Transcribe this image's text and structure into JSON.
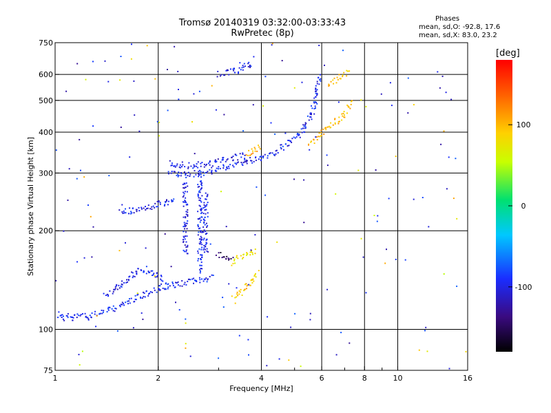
{
  "chart_data": {
    "type": "scatter",
    "title": "Tromsø 20140319 03:32:00-03:33:43",
    "subtitle": "RwPretec (8p)",
    "phases_header": "Phases",
    "phases_o": "mean, sd,O: -92.8, 17.6",
    "phases_x": "mean, sd,X: 83.0, 23.2",
    "xlabel": "Frequency [MHz]",
    "ylabel": "Stationary phase Virtual Height [km]",
    "x_scale": "log2",
    "y_scale": "log",
    "xlim": [
      1,
      16
    ],
    "ylim": [
      75,
      750
    ],
    "x_ticks": [
      1,
      2,
      4,
      6,
      8,
      10,
      16
    ],
    "x_minor_ticks": [
      3,
      5,
      7,
      9
    ],
    "y_ticks": [
      75,
      100,
      200,
      300,
      400,
      500,
      600,
      750
    ],
    "grid_x": [
      2,
      4,
      6,
      8,
      10
    ],
    "grid_y": [
      100,
      200,
      300,
      400,
      500,
      600
    ],
    "colorbar": {
      "label": "[deg]",
      "range": [
        -180,
        180
      ],
      "ticks": [
        100,
        0,
        -100
      ],
      "colors": [
        "#000000",
        "#3a0a80",
        "#1a2dff",
        "#00c8ff",
        "#00e070",
        "#c8ff00",
        "#ffd000",
        "#ff6000",
        "#ff0000"
      ]
    },
    "series": [
      {
        "kind": "trace",
        "points": [
          [
            1.02,
            112
          ],
          [
            1.05,
            108
          ],
          [
            1.08,
            110
          ],
          [
            1.12,
            107
          ],
          [
            1.18,
            111
          ],
          [
            1.25,
            109
          ],
          [
            1.32,
            112
          ],
          [
            1.4,
            113
          ],
          [
            1.5,
            116
          ],
          [
            1.6,
            120
          ],
          [
            1.7,
            124
          ],
          [
            1.8,
            127
          ],
          [
            1.9,
            130
          ],
          [
            2.0,
            133
          ],
          [
            2.1,
            134
          ],
          [
            2.2,
            136
          ],
          [
            2.35,
            138
          ],
          [
            2.5,
            140
          ],
          [
            2.7,
            142
          ],
          [
            2.9,
            145
          ]
        ],
        "phase": -95
      },
      {
        "kind": "trace",
        "points": [
          [
            1.4,
            128
          ],
          [
            1.5,
            132
          ],
          [
            1.6,
            140
          ],
          [
            1.7,
            148
          ],
          [
            1.8,
            153
          ],
          [
            1.9,
            150
          ],
          [
            2.0,
            144
          ],
          [
            2.1,
            138
          ]
        ],
        "phase": -100
      },
      {
        "kind": "trace",
        "points": [
          [
            1.55,
            227
          ],
          [
            1.7,
            230
          ],
          [
            1.85,
            235
          ],
          [
            2.0,
            240
          ],
          [
            2.1,
            243
          ],
          [
            2.2,
            246
          ],
          [
            2.25,
            252
          ]
        ],
        "phase": -98
      },
      {
        "kind": "trace",
        "points": [
          [
            2.15,
            300
          ],
          [
            2.3,
            298
          ],
          [
            2.45,
            298
          ],
          [
            2.6,
            299
          ],
          [
            2.8,
            303
          ],
          [
            3.0,
            308
          ],
          [
            3.2,
            315
          ],
          [
            3.5,
            322
          ],
          [
            3.8,
            330
          ],
          [
            4.1,
            338
          ],
          [
            4.5,
            352
          ],
          [
            4.9,
            375
          ],
          [
            5.3,
            405
          ],
          [
            5.6,
            450
          ],
          [
            5.8,
            520
          ],
          [
            5.9,
            600
          ]
        ],
        "phase": -95
      },
      {
        "kind": "trace",
        "points": [
          [
            2.15,
            320
          ],
          [
            2.3,
            318
          ],
          [
            2.5,
            316
          ],
          [
            2.7,
            318
          ],
          [
            2.9,
            322
          ],
          [
            3.1,
            328
          ],
          [
            3.3,
            334
          ],
          [
            3.6,
            340
          ]
        ],
        "phase": -100
      },
      {
        "kind": "trace",
        "points": [
          [
            2.4,
            170
          ],
          [
            2.4,
            200
          ],
          [
            2.4,
            230
          ],
          [
            2.4,
            260
          ],
          [
            2.4,
            290
          ]
        ],
        "phase": -100
      },
      {
        "kind": "trace",
        "points": [
          [
            2.65,
            150
          ],
          [
            2.65,
            180
          ],
          [
            2.65,
            210
          ],
          [
            2.65,
            240
          ],
          [
            2.65,
            270
          ],
          [
            2.65,
            300
          ]
        ],
        "phase": -95
      },
      {
        "kind": "trace",
        "points": [
          [
            2.75,
            170
          ],
          [
            2.75,
            200
          ],
          [
            2.75,
            230
          ],
          [
            2.75,
            260
          ]
        ],
        "phase": -100
      },
      {
        "kind": "trace",
        "points": [
          [
            3.0,
            600
          ],
          [
            3.1,
            605
          ],
          [
            3.2,
            610
          ],
          [
            3.4,
            615
          ],
          [
            3.6,
            640
          ],
          [
            3.8,
            650
          ]
        ],
        "phase": -100
      },
      {
        "kind": "trace",
        "points": [
          [
            3.0,
            170
          ],
          [
            3.1,
            168
          ],
          [
            3.2,
            166
          ],
          [
            3.3,
            162
          ]
        ],
        "phase": -150
      },
      {
        "kind": "trace",
        "points": [
          [
            3.3,
            125
          ],
          [
            3.5,
            130
          ],
          [
            3.7,
            140
          ],
          [
            3.9,
            150
          ]
        ],
        "phase": 90
      },
      {
        "kind": "trace",
        "points": [
          [
            3.3,
            160
          ],
          [
            3.5,
            168
          ],
          [
            3.7,
            172
          ],
          [
            3.9,
            175
          ]
        ],
        "phase": 80
      },
      {
        "kind": "trace",
        "points": [
          [
            3.6,
            340
          ],
          [
            3.8,
            355
          ],
          [
            4.0,
            360
          ]
        ],
        "phase": 105
      },
      {
        "kind": "trace",
        "points": [
          [
            5.5,
            370
          ],
          [
            5.8,
            385
          ],
          [
            6.2,
            410
          ],
          [
            6.6,
            430
          ],
          [
            7.0,
            460
          ],
          [
            7.3,
            500
          ]
        ],
        "phase": 100
      },
      {
        "kind": "trace",
        "points": [
          [
            6.3,
            560
          ],
          [
            6.8,
            590
          ],
          [
            7.2,
            610
          ]
        ],
        "phase": 95
      }
    ]
  }
}
